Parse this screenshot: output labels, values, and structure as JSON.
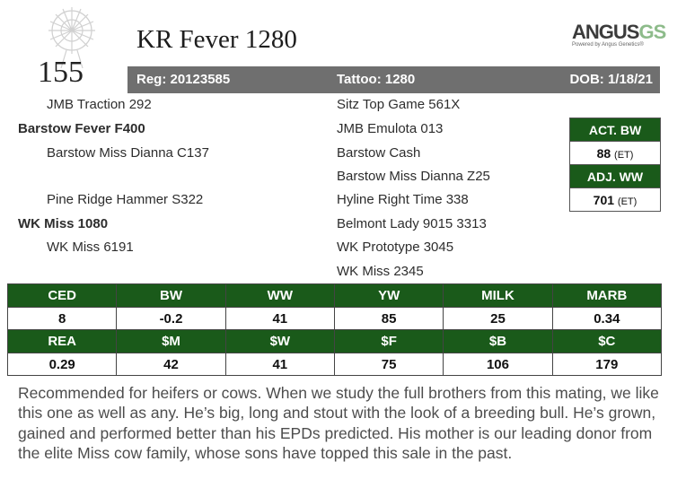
{
  "header": {
    "lot_number": "155",
    "animal_name": "KR Fever 1280",
    "registration": "Reg: 20123585",
    "tattoo": "Tattoo: 1280",
    "dob": "DOB: 1/18/21"
  },
  "logo": {
    "main": "ANGUS",
    "suffix": "GS",
    "tagline": "Powered by Angus Genetics®"
  },
  "pedigree": {
    "sire_sire": "JMB Traction 292",
    "sire": "Barstow Fever F400",
    "sire_dam": "Barstow Miss Dianna C137",
    "dam_sire": "Pine Ridge Hammer S322",
    "dam": "WK Miss 1080",
    "dam_dam": "WK Miss 6191",
    "right": [
      "Sitz Top Game 561X",
      "JMB Emulota 013",
      "Barstow Cash",
      "Barstow Miss Dianna Z25",
      "Hyline Right Time 338",
      "Belmont Lady 9015 3313",
      "WK Prototype 3045",
      "WK Miss 2345"
    ]
  },
  "birth_weights": {
    "act_bw_label": "ACT. BW",
    "act_bw_value": "88",
    "act_bw_note": "(ET)",
    "adj_ww_label": "ADJ. WW",
    "adj_ww_value": "701",
    "adj_ww_note": "(ET)"
  },
  "epds": {
    "row1_labels": [
      "CED",
      "BW",
      "WW",
      "YW",
      "MILK",
      "MARB"
    ],
    "row1_values": [
      "8",
      "-0.2",
      "41",
      "85",
      "25",
      "0.34"
    ],
    "row2_labels": [
      "REA",
      "$M",
      "$W",
      "$F",
      "$B",
      "$C"
    ],
    "row2_values": [
      "0.29",
      "42",
      "41",
      "75",
      "106",
      "179"
    ]
  },
  "comments": "Recommended for heifers or cows. When we study the full brothers from this mating, we like this one as well as any. He’s big, long and stout with the look of a breeding bull. He’s grown, gained and performed better than his EPDs predicted. His mother is our leading donor from the elite Miss cow family, whose sons have topped this sale in the past.",
  "colors": {
    "header_green": "#1a5a1a",
    "reg_bar_gray": "#6f6f6f"
  }
}
